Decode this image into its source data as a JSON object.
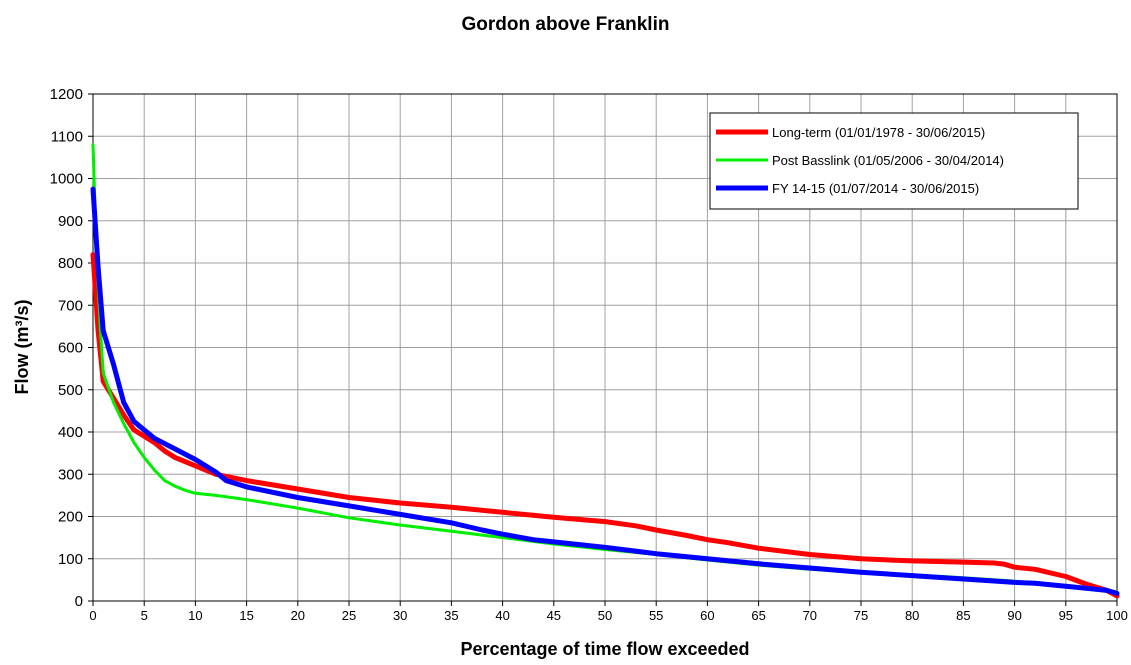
{
  "chart_data": {
    "type": "line",
    "title": "Gordon above Franklin",
    "xlabel": "Percentage of time flow exceeded",
    "ylabel": "Flow (m³/s)",
    "xlim": [
      0,
      100
    ],
    "ylim": [
      0,
      1200
    ],
    "x_ticks": [
      0,
      5,
      10,
      15,
      20,
      25,
      30,
      35,
      40,
      45,
      50,
      55,
      60,
      65,
      70,
      75,
      80,
      85,
      90,
      95,
      100
    ],
    "y_ticks": [
      0,
      100,
      200,
      300,
      400,
      500,
      600,
      700,
      800,
      900,
      1000,
      1100,
      1200
    ],
    "grid": true,
    "legend_position": "top-right",
    "series": [
      {
        "name": "Long-term (01/01/1978 - 30/06/2015)",
        "color": "#ff0000",
        "points": [
          [
            0,
            820
          ],
          [
            0.5,
            640
          ],
          [
            1,
            520
          ],
          [
            2,
            480
          ],
          [
            3,
            440
          ],
          [
            4,
            405
          ],
          [
            5,
            390
          ],
          [
            6,
            375
          ],
          [
            7,
            355
          ],
          [
            8,
            340
          ],
          [
            10,
            320
          ],
          [
            12,
            300
          ],
          [
            15,
            285
          ],
          [
            20,
            265
          ],
          [
            25,
            245
          ],
          [
            30,
            232
          ],
          [
            35,
            222
          ],
          [
            40,
            210
          ],
          [
            45,
            198
          ],
          [
            50,
            188
          ],
          [
            53,
            178
          ],
          [
            55,
            168
          ],
          [
            58,
            155
          ],
          [
            60,
            145
          ],
          [
            62,
            138
          ],
          [
            65,
            125
          ],
          [
            70,
            110
          ],
          [
            75,
            100
          ],
          [
            80,
            95
          ],
          [
            85,
            92
          ],
          [
            88,
            90
          ],
          [
            89,
            87
          ],
          [
            90,
            80
          ],
          [
            92,
            75
          ],
          [
            95,
            58
          ],
          [
            97,
            40
          ],
          [
            99,
            25
          ],
          [
            100,
            12
          ]
        ]
      },
      {
        "name": "Post Basslink (01/05/2006 - 30/04/2014)",
        "color": "#00ee00",
        "points": [
          [
            0,
            1080
          ],
          [
            0.3,
            850
          ],
          [
            0.7,
            650
          ],
          [
            1,
            540
          ],
          [
            2,
            470
          ],
          [
            3,
            420
          ],
          [
            4,
            375
          ],
          [
            5,
            340
          ],
          [
            6,
            310
          ],
          [
            7,
            285
          ],
          [
            8,
            272
          ],
          [
            9,
            262
          ],
          [
            10,
            255
          ],
          [
            12,
            250
          ],
          [
            15,
            240
          ],
          [
            20,
            220
          ],
          [
            25,
            197
          ],
          [
            30,
            180
          ],
          [
            35,
            165
          ],
          [
            40,
            150
          ],
          [
            45,
            135
          ],
          [
            50,
            122
          ],
          [
            55,
            110
          ],
          [
            60,
            97
          ],
          [
            65,
            85
          ],
          [
            70,
            75
          ],
          [
            75,
            68
          ],
          [
            80,
            62
          ],
          [
            85,
            55
          ],
          [
            90,
            47
          ],
          [
            95,
            35
          ],
          [
            98,
            28
          ],
          [
            100,
            22
          ]
        ]
      },
      {
        "name": "FY 14-15 (01/07/2014 - 30/06/2015)",
        "color": "#0000ff",
        "points": [
          [
            0,
            975
          ],
          [
            0.5,
            790
          ],
          [
            1,
            640
          ],
          [
            2,
            560
          ],
          [
            3,
            470
          ],
          [
            4,
            425
          ],
          [
            5,
            405
          ],
          [
            6,
            385
          ],
          [
            8,
            360
          ],
          [
            10,
            335
          ],
          [
            12,
            305
          ],
          [
            13,
            285
          ],
          [
            15,
            270
          ],
          [
            20,
            245
          ],
          [
            25,
            225
          ],
          [
            30,
            205
          ],
          [
            35,
            185
          ],
          [
            38,
            168
          ],
          [
            40,
            158
          ],
          [
            43,
            145
          ],
          [
            45,
            140
          ],
          [
            50,
            127
          ],
          [
            55,
            112
          ],
          [
            60,
            100
          ],
          [
            65,
            88
          ],
          [
            70,
            78
          ],
          [
            75,
            68
          ],
          [
            80,
            60
          ],
          [
            85,
            52
          ],
          [
            90,
            44
          ],
          [
            92,
            42
          ],
          [
            95,
            35
          ],
          [
            97,
            30
          ],
          [
            99,
            25
          ],
          [
            100,
            18
          ]
        ]
      }
    ]
  }
}
